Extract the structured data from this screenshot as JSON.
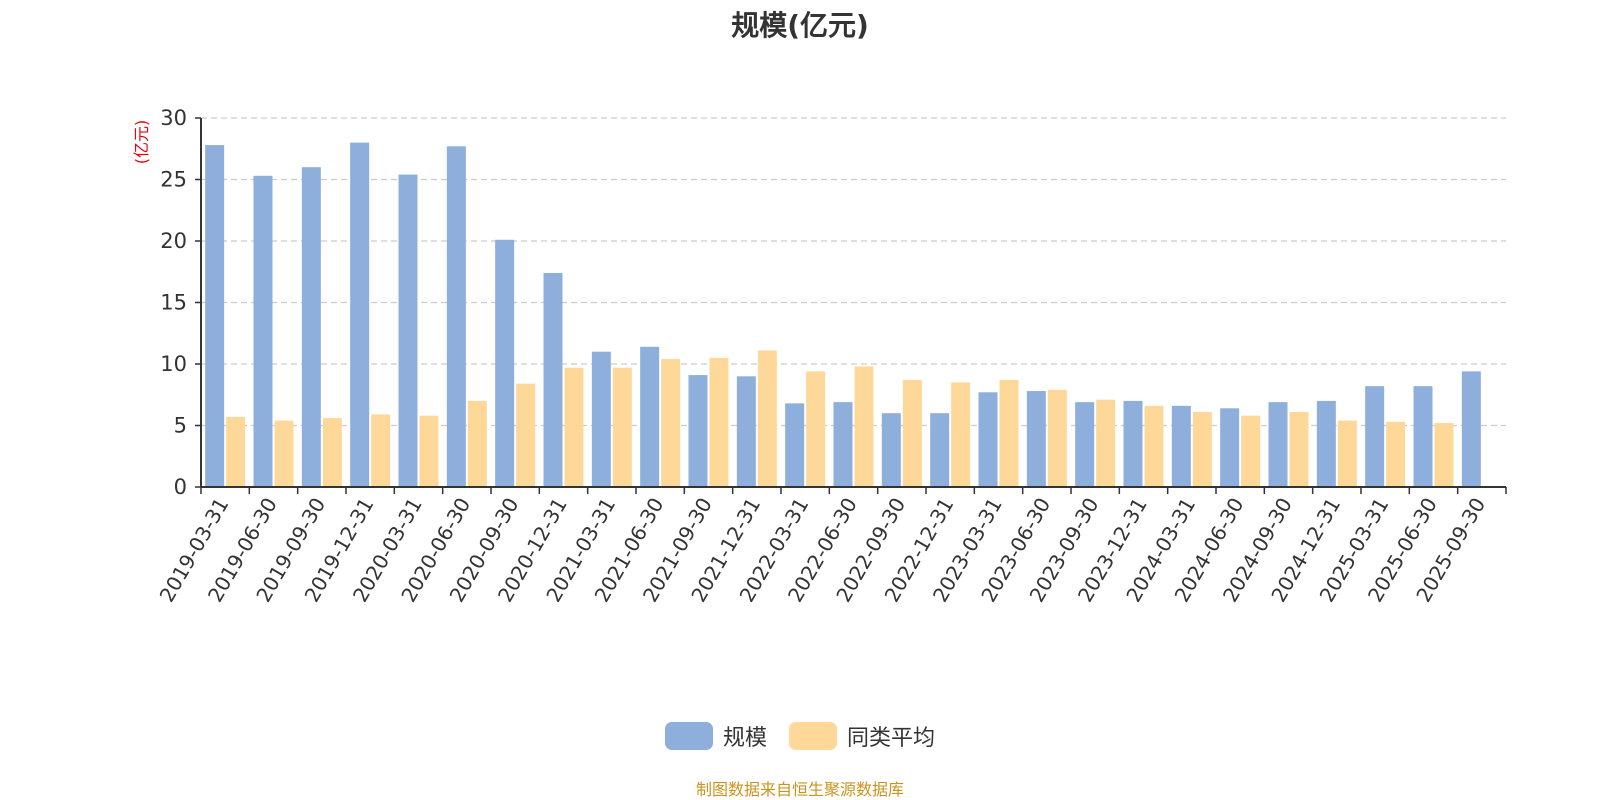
{
  "chart_data": {
    "type": "bar",
    "title": "规模(亿元)",
    "ylabel": "(亿元)",
    "xlabel": "",
    "ylim": [
      0,
      30
    ],
    "yticks": [
      0,
      5,
      10,
      15,
      20,
      25,
      30
    ],
    "grid": true,
    "legend_position": "bottom-center",
    "categories": [
      "2019-03-31",
      "2019-06-30",
      "2019-09-30",
      "2019-12-31",
      "2020-03-31",
      "2020-06-30",
      "2020-09-30",
      "2020-12-31",
      "2021-03-31",
      "2021-06-30",
      "2021-09-30",
      "2021-12-31",
      "2022-03-31",
      "2022-06-30",
      "2022-09-30",
      "2022-12-31",
      "2023-03-31",
      "2023-06-30",
      "2023-09-30",
      "2023-12-31",
      "2024-03-31",
      "2024-06-30",
      "2024-09-30",
      "2024-12-31",
      "2025-03-31",
      "2025-06-30",
      "2025-09-30"
    ],
    "series": [
      {
        "name": "规模",
        "color": "#8eafdc",
        "values": [
          27.8,
          25.3,
          26.0,
          28.0,
          25.4,
          27.7,
          20.1,
          17.4,
          11.0,
          11.4,
          9.1,
          9.0,
          6.8,
          6.9,
          6.0,
          6.0,
          7.7,
          7.8,
          6.9,
          7.0,
          6.6,
          6.4,
          6.9,
          7.0,
          8.2,
          8.2,
          9.4
        ]
      },
      {
        "name": "同类平均",
        "color": "#fdd898",
        "values": [
          5.7,
          5.4,
          5.6,
          5.9,
          5.8,
          7.0,
          8.4,
          9.7,
          9.7,
          10.4,
          10.5,
          11.1,
          9.4,
          9.8,
          8.7,
          8.5,
          8.7,
          7.9,
          7.1,
          6.6,
          6.1,
          5.8,
          6.1,
          5.4,
          5.3,
          5.2,
          null
        ]
      }
    ]
  },
  "source_text": "制图数据来自恒生聚源数据库"
}
